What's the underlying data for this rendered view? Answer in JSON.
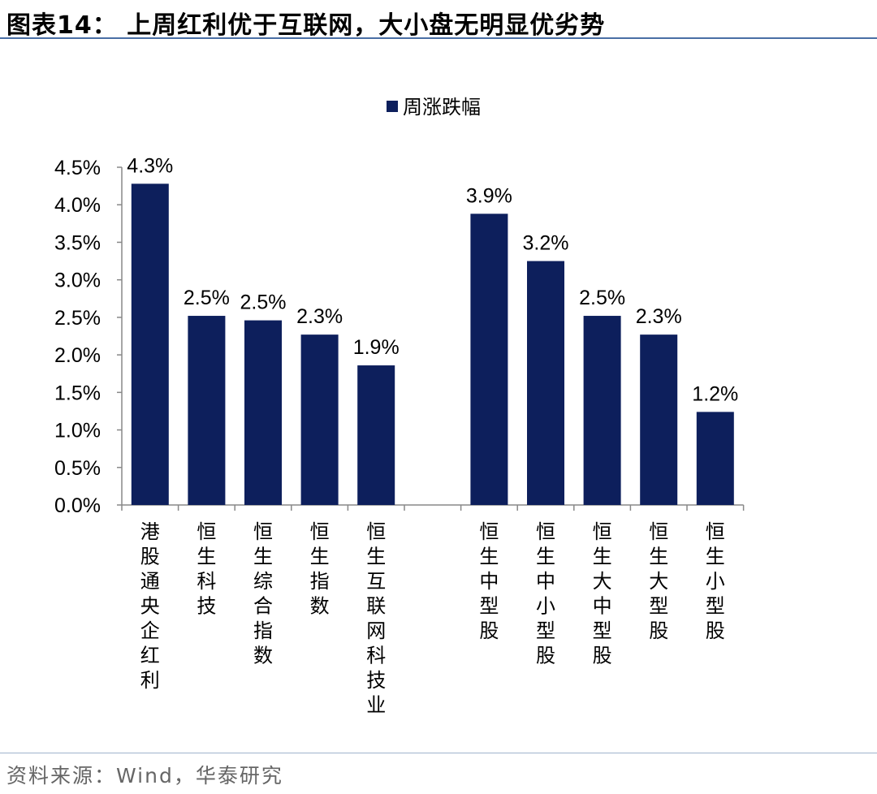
{
  "header": {
    "title": "图表14：  上周红利优于互联网，大小盘无明显优劣势"
  },
  "footer": {
    "source": "资料来源：Wind，华泰研究"
  },
  "chart_data": {
    "type": "bar",
    "legend": [
      "周涨跌幅"
    ],
    "legend_position": "top-center",
    "bar_color": "#0d1f5c",
    "grid": false,
    "ylim": [
      0,
      4.5
    ],
    "yticks": [
      "0.0%",
      "0.5%",
      "1.0%",
      "1.5%",
      "2.0%",
      "2.5%",
      "3.0%",
      "3.5%",
      "4.0%",
      "4.5%"
    ],
    "groups": [
      {
        "categories": [
          "港股通央企红利",
          "恒生科技",
          "恒生综合指数",
          "恒生指数",
          "恒生互联网科技业"
        ],
        "values": [
          4.28,
          2.52,
          2.46,
          2.27,
          1.86
        ],
        "labels": [
          "4.3%",
          "2.5%",
          "2.5%",
          "2.3%",
          "1.9%"
        ]
      },
      {
        "categories": [
          "恒生中型股",
          "恒生中小型股",
          "恒生大中型股",
          "恒生大型股",
          "恒生小型股"
        ],
        "values": [
          3.88,
          3.25,
          2.52,
          2.27,
          1.24
        ],
        "labels": [
          "3.9%",
          "3.2%",
          "2.5%",
          "2.3%",
          "1.2%"
        ]
      }
    ]
  }
}
